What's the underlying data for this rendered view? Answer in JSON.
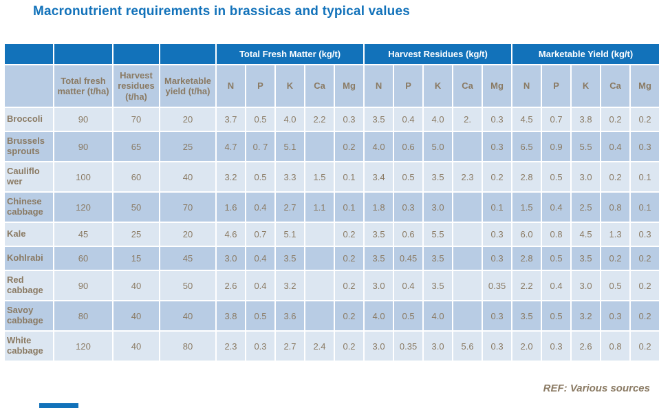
{
  "title": "Macronutrient requirements in brassicas and typical values",
  "footer": {
    "ref": "REF: Various sources"
  },
  "colors": {
    "accent_blue": "#1272BA",
    "row_light": "#DCE6F1",
    "row_medium": "#B8CCE4",
    "header_light_bg": "#B8CCE4",
    "text_brown": "#8A7A63",
    "grid_white": "#FFFFFF"
  },
  "table": {
    "group_headers": [
      "Total Fresh Matter (kg/t)",
      "Harvest Residues (kg/t)",
      "Marketable Yield (kg/t)"
    ],
    "column_headers": [
      "Total fresh matter (t/ha)",
      "Harvest residues (t/ha)",
      "Marketable yield (t/ha)"
    ],
    "nutrients": [
      "N",
      "P",
      "K",
      "Ca",
      "Mg"
    ],
    "rows": [
      {
        "name": "Broccoli",
        "values": [
          "90",
          "70",
          "20",
          "3.7",
          "0.5",
          "4.0",
          "2.2",
          "0.3",
          "3.5",
          "0.4",
          "4.0",
          "2.",
          "0.3",
          "4.5",
          "0.7",
          "3.8",
          "0.2",
          "0.2"
        ]
      },
      {
        "name": "Brussels sprouts",
        "values": [
          "90",
          "65",
          "25",
          "4.7",
          "0. 7",
          "5.1",
          "",
          "0.2",
          "4.0",
          "0.6",
          "5.0",
          "",
          "0.3",
          "6.5",
          "0.9",
          "5.5",
          "0.4",
          "0.3"
        ]
      },
      {
        "name": "Cauliflo wer",
        "values": [
          "100",
          "60",
          "40",
          "3.2",
          "0.5",
          "3.3",
          "1.5",
          "0.1",
          "3.4",
          "0.5",
          "3.5",
          "2.3",
          "0.2",
          "2.8",
          "0.5",
          "3.0",
          "0.2",
          "0.1"
        ]
      },
      {
        "name": "Chinese cabbage",
        "values": [
          "120",
          "50",
          "70",
          "1.6",
          "0.4",
          "2.7",
          "1.1",
          "0.1",
          "1.8",
          "0.3",
          "3.0",
          "",
          "0.1",
          "1.5",
          "0.4",
          "2.5",
          "0.8",
          "0.1"
        ]
      },
      {
        "name": "Kale",
        "values": [
          "45",
          "25",
          "20",
          "4.6",
          "0.7",
          "5.1",
          "",
          "0.2",
          "3.5",
          "0.6",
          "5.5",
          "",
          "0.3",
          "6.0",
          "0.8",
          "4.5",
          "1.3",
          "0.3"
        ]
      },
      {
        "name": "Kohlrabi",
        "values": [
          "60",
          "15",
          "45",
          "3.0",
          "0.4",
          "3.5",
          "",
          "0.2",
          "3.5",
          "0.45",
          "3.5",
          "",
          "0.3",
          "2.8",
          "0.5",
          "3.5",
          "0.2",
          "0.2"
        ]
      },
      {
        "name": "Red cabbage",
        "values": [
          "90",
          "40",
          "50",
          "2.6",
          "0.4",
          "3.2",
          "",
          "0.2",
          "3.0",
          "0.4",
          "3.5",
          "",
          "0.35",
          "2.2",
          "0.4",
          "3.0",
          "0.5",
          "0.2"
        ]
      },
      {
        "name": "Savoy cabbage",
        "values": [
          "80",
          "40",
          "40",
          "3.8",
          "0.5",
          "3.6",
          "",
          "0.2",
          "4.0",
          "0.5",
          "4.0",
          "",
          "0.3",
          "3.5",
          "0.5",
          "3.2",
          "0.3",
          "0.2"
        ]
      },
      {
        "name": "White cabbage",
        "values": [
          "120",
          "40",
          "80",
          "2.3",
          "0.3",
          "2.7",
          "2.4",
          "0.2",
          "3.0",
          "0.35",
          "3.0",
          "5.6",
          "0.3",
          "2.0",
          "0.3",
          "2.6",
          "0.8",
          "0.2"
        ]
      }
    ]
  }
}
